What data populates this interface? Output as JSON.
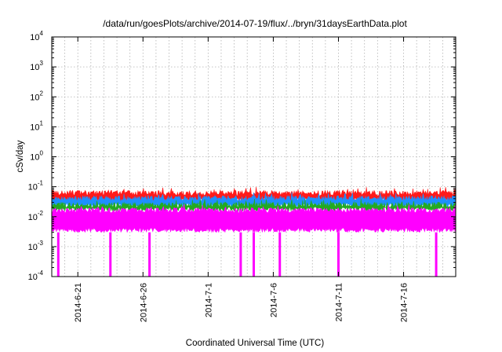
{
  "chart_data": {
    "type": "area",
    "title": "/data/run/goesPlots/archive/2014-07-19/flux/../bryn/31daysEarthData.plot",
    "xlabel": "Coordinated Universal Time (UTC)",
    "ylabel": "cSv/day",
    "yscale": "log",
    "ylim": [
      0.0001,
      10000
    ],
    "xlim": [
      "2014-06-19",
      "2014-07-20"
    ],
    "grid": true,
    "y_ticks": [
      {
        "value": 0.0001,
        "base": "10",
        "exp": "-4"
      },
      {
        "value": 0.001,
        "base": "10",
        "exp": "-3"
      },
      {
        "value": 0.01,
        "base": "10",
        "exp": "-2"
      },
      {
        "value": 0.1,
        "base": "10",
        "exp": "-1"
      },
      {
        "value": 1,
        "base": "10",
        "exp": "0"
      },
      {
        "value": 10,
        "base": "10",
        "exp": "1"
      },
      {
        "value": 100,
        "base": "10",
        "exp": "2"
      },
      {
        "value": 1000,
        "base": "10",
        "exp": "3"
      },
      {
        "value": 10000,
        "base": "10",
        "exp": "4"
      }
    ],
    "x_ticks": [
      "2014-6-21",
      "2014-6-26",
      "2014-7-1",
      "2014-7-6",
      "2014-7-11",
      "2014-7-16"
    ],
    "series": [
      {
        "color": "#ff1a1a",
        "typical_min": 0.03,
        "typical_max": 0.075
      },
      {
        "color": "#1e8fff",
        "typical_min": 0.02,
        "typical_max": 0.05
      },
      {
        "color": "#22aa22",
        "typical_min": 0.015,
        "typical_max": 0.03
      },
      {
        "color": "#ff00ff",
        "typical_min": 0.003,
        "typical_max": 0.02,
        "dropouts": [
          "2014-06-19T12:00",
          "2014-06-23T12:00",
          "2014-06-26T12:00",
          "2014-07-03T12:00",
          "2014-07-04T12:00",
          "2014-07-06T12:00",
          "2014-07-11T00:00",
          "2014-07-18T12:00"
        ]
      }
    ]
  }
}
